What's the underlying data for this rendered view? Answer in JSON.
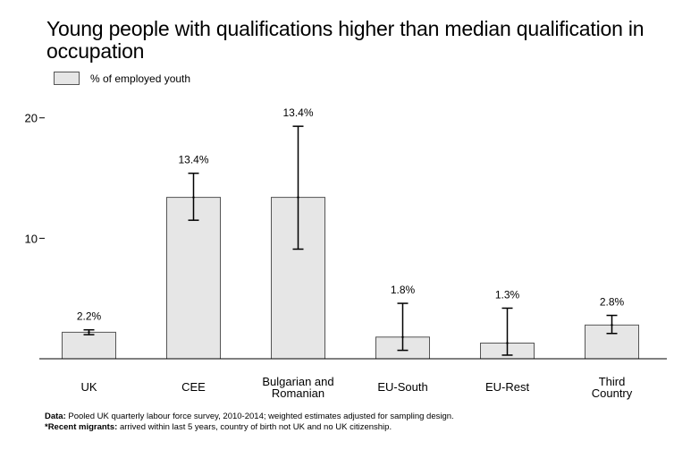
{
  "chart_data": {
    "type": "bar",
    "title": "Young people with qualifications higher than median qualification in occupation",
    "legend": {
      "position": "top-left",
      "entries": [
        "% of employed youth"
      ]
    },
    "categories": [
      "UK",
      "CEE",
      "Bulgarian and Romanian",
      "EU-South",
      "EU-Rest",
      "Third Country"
    ],
    "series": [
      {
        "name": "% of employed youth",
        "values": [
          2.2,
          13.4,
          13.4,
          1.8,
          1.3,
          2.8
        ],
        "labels": [
          "2.2%",
          "13.4%",
          "13.4%",
          "1.8%",
          "1.3%",
          "2.8%"
        ],
        "error_low": [
          2.0,
          11.5,
          9.1,
          0.7,
          0.3,
          2.1
        ],
        "error_high": [
          2.4,
          15.4,
          19.3,
          4.6,
          4.2,
          3.6
        ]
      }
    ],
    "y_ticks": [
      "10",
      "20"
    ],
    "ylim": [
      0,
      20.5
    ],
    "grid": false,
    "colors": {
      "bar_fill": "#e6e6e6",
      "bar_stroke": "#555555",
      "error_bar": "#000000"
    }
  },
  "footer": {
    "line1_label": "Data:",
    "line1_text": " Pooled UK quarterly labour force survey, 2010-2014; weighted estimates adjusted for sampling design.",
    "line2_label": "*Recent migrants:",
    "line2_text": " arrived within last 5 years, country of birth not UK and no UK citizenship."
  }
}
